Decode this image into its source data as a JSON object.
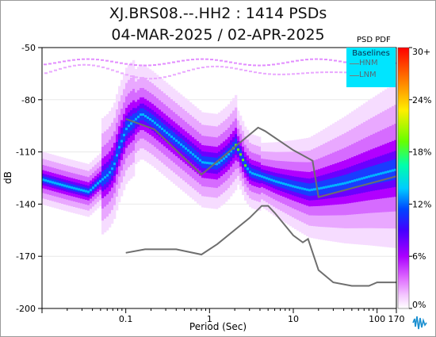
{
  "header": {
    "title": "XJ.BRS08.--.HH2 : 1414 PSDs",
    "subtitle": "04-MAR-2025 / 02-APR-2025"
  },
  "legend": {
    "title": "Baselines",
    "items": [
      "HNM",
      "LNM"
    ],
    "pdf_label": "PSD PDF"
  },
  "colorbar": {
    "ticks": [
      "30+",
      "24%",
      "18%",
      "12%",
      "6%",
      "0%"
    ],
    "stops": [
      "#ffffff",
      "#f4c8ff",
      "#dd66ff",
      "#aa00ff",
      "#4400ff",
      "#0044ff",
      "#00ccff",
      "#00ffaa",
      "#66ff00",
      "#ffee00",
      "#ff7700",
      "#ff0000"
    ]
  },
  "chart_data": {
    "type": "heatmap",
    "title": "XJ.BRS08.--.HH2 : 1414 PSDs",
    "subtitle": "04-MAR-2025 / 02-APR-2025",
    "xlabel": "Period (Sec)",
    "ylabel": "dB",
    "x_scale": "log",
    "xlim": [
      0.01,
      170
    ],
    "ylim": [
      -200,
      -50
    ],
    "x_ticks": [
      "0.1",
      "1",
      "10",
      "100",
      "170"
    ],
    "x_tick_values": [
      0.1,
      1,
      10,
      100,
      170
    ],
    "y_ticks": [
      "-50",
      "-80",
      "-110",
      "-140",
      "-170",
      "-200"
    ],
    "y_tick_values": [
      -50,
      -80,
      -110,
      -140,
      -170,
      -200
    ],
    "colorbar_label": "PSD PDF",
    "colorbar_range": [
      0,
      30
    ],
    "colorbar_ticks": [
      "30+",
      "24%",
      "18%",
      "12%",
      "6%",
      "0%"
    ],
    "baselines": [
      {
        "name": "HNM",
        "points": [
          [
            0.1,
            -91
          ],
          [
            0.22,
            -97
          ],
          [
            0.8,
            -123
          ],
          [
            3.8,
            -96
          ],
          [
            4.6,
            -98
          ],
          [
            10,
            -109
          ],
          [
            17,
            -115
          ],
          [
            20,
            -136
          ],
          [
            170,
            -124
          ]
        ]
      },
      {
        "name": "LNM",
        "points": [
          [
            0.1,
            -168
          ],
          [
            0.17,
            -166
          ],
          [
            0.4,
            -166
          ],
          [
            0.8,
            -169
          ],
          [
            1.24,
            -163
          ],
          [
            3.0,
            -148
          ],
          [
            4.2,
            -141
          ],
          [
            5.0,
            -141
          ],
          [
            6.0,
            -145
          ],
          [
            10,
            -158
          ],
          [
            13,
            -162
          ],
          [
            15,
            -160
          ],
          [
            20,
            -178
          ],
          [
            30,
            -185
          ],
          [
            50,
            -187
          ],
          [
            80,
            -187
          ],
          [
            100,
            -185
          ],
          [
            170,
            -185
          ]
        ]
      }
    ],
    "pdf_mode": [
      [
        0.01,
        -126
      ],
      [
        0.02,
        -130
      ],
      [
        0.035,
        -133
      ],
      [
        0.045,
        -128
      ],
      [
        0.06,
        -123
      ],
      [
        0.07,
        -118
      ],
      [
        0.08,
        -108
      ],
      [
        0.1,
        -96
      ],
      [
        0.15,
        -88
      ],
      [
        0.2,
        -92
      ],
      [
        0.4,
        -104
      ],
      [
        0.8,
        -116
      ],
      [
        1.2,
        -117
      ],
      [
        1.6,
        -112
      ],
      [
        2.0,
        -106
      ],
      [
        2.3,
        -112
      ],
      [
        2.6,
        -118
      ],
      [
        3.0,
        -122
      ],
      [
        4.0,
        -124
      ],
      [
        6.0,
        -127
      ],
      [
        10,
        -130
      ],
      [
        15,
        -132
      ],
      [
        20,
        -131
      ],
      [
        40,
        -128
      ],
      [
        80,
        -124
      ],
      [
        170,
        -120
      ]
    ]
  }
}
